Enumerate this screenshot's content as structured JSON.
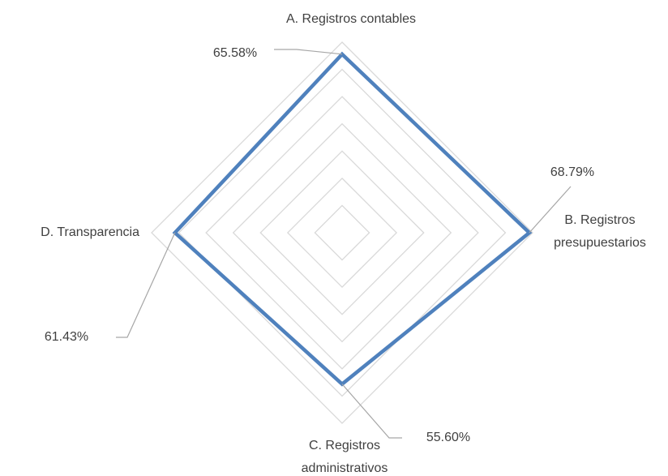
{
  "chart_data": {
    "type": "radar",
    "categories": [
      "A. Registros contables",
      "B. Registros presupuestarios",
      "C. Registros administrativos",
      "D. Transparencia"
    ],
    "values": [
      65.58,
      68.79,
      55.6,
      61.43
    ],
    "value_labels": [
      "65.58%",
      "68.79%",
      "55.60%",
      "61.43%"
    ],
    "color": "#4f81bd",
    "ylim": [
      0,
      70
    ],
    "yticks": [
      0,
      10,
      20,
      30,
      40,
      50,
      60,
      70
    ],
    "grid": true
  }
}
